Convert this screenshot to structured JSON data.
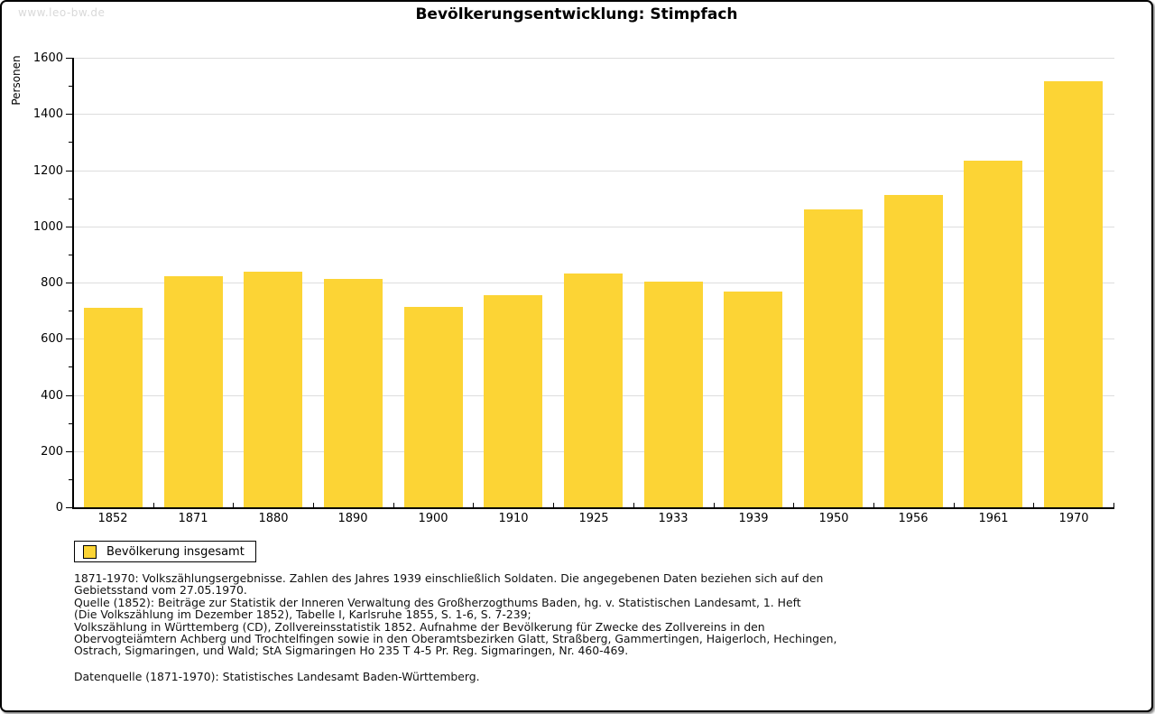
{
  "watermark": "www.leo-bw.de",
  "title": "Bevölkerungsentwicklung: Stimpfach",
  "colors": {
    "bar": "#fcd435",
    "grid": "#dddddd",
    "axis": "#000000",
    "watermark": "#d9d9d9",
    "background": "#ffffff"
  },
  "chart_data": {
    "type": "bar",
    "title": "Bevölkerungsentwicklung: Stimpfach",
    "categories": [
      "1852",
      "1871",
      "1880",
      "1890",
      "1900",
      "1910",
      "1925",
      "1933",
      "1939",
      "1950",
      "1956",
      "1961",
      "1970"
    ],
    "values": [
      710,
      821,
      838,
      814,
      713,
      756,
      833,
      804,
      768,
      1061,
      1113,
      1235,
      1516
    ],
    "series_name": "Bevölkerung insgesamt",
    "xlabel": "",
    "ylabel": "Personen",
    "ylim": [
      0,
      1600
    ],
    "ytick_step": 200,
    "yminor_step": 100,
    "grid": true,
    "legend_position": "bottom-left",
    "bar_color": "#fcd435"
  },
  "legend": {
    "label": "Bevölkerung insgesamt"
  },
  "footnotes": {
    "lines": [
      "1871-1970: Volkszählungsergebnisse. Zahlen des Jahres 1939 einschließlich Soldaten. Die angegebenen Daten beziehen sich auf den",
      "Gebietsstand vom 27.05.1970.",
      "Quelle (1852): Beiträge zur Statistik der Inneren Verwaltung des Großherzogthums Baden, hg. v. Statistischen Landesamt, 1. Heft",
      "(Die Volkszählung im Dezember 1852), Tabelle I, Karlsruhe 1855, S. 1-6, S. 7-239;",
      "Volkszählung in Württemberg (CD), Zollvereinsstatistik 1852. Aufnahme der Bevölkerung für Zwecke des Zollvereins in den",
      "Obervogteiämtern Achberg und Trochtelfingen sowie in den Oberamtsbezirken Glatt, Straßberg, Gammertingen, Haigerloch, Hechingen,",
      "Ostrach, Sigmaringen, und Wald; StA Sigmaringen Ho 235 T 4-5 Pr. Reg. Sigmaringen, Nr. 460-469."
    ],
    "datenquelle": "Datenquelle (1871-1970): Statistisches Landesamt Baden-Württemberg."
  }
}
